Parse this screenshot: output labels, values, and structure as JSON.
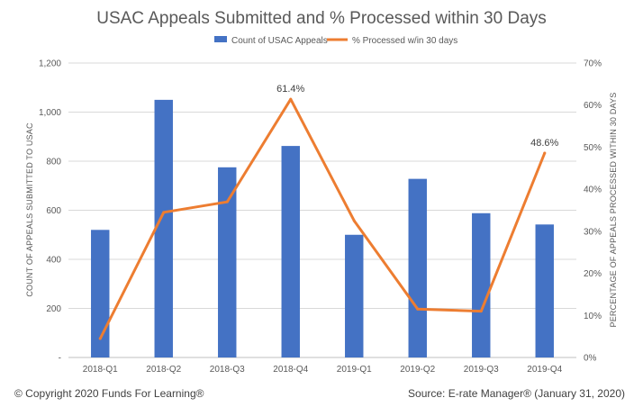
{
  "chart_data": {
    "type": "bar",
    "title": "USAC Appeals Submitted and % Processed within 30 Days",
    "categories": [
      "2018-Q1",
      "2018-Q2",
      "2018-Q3",
      "2018-Q4",
      "2019-Q1",
      "2019-Q2",
      "2019-Q3",
      "2019-Q4"
    ],
    "series": [
      {
        "name": "Count of USAC Appeals",
        "type": "bar",
        "axis": "left",
        "color": "#4472C4",
        "values": [
          520,
          1050,
          775,
          862,
          500,
          728,
          588,
          542
        ]
      },
      {
        "name": "% Processed w/in 30 days",
        "type": "line",
        "axis": "right",
        "color": "#ED7D31",
        "values": [
          4.5,
          34.5,
          37.0,
          61.4,
          32.5,
          11.5,
          11.0,
          48.6
        ]
      }
    ],
    "ylabel": "COUNT OF APPEALS SUBMITTED TO USAC",
    "y2label": "PERCENTAGE OF APPEALS PROCESSED WITHIN 30 DAYS",
    "ylim": [
      0,
      1200
    ],
    "yticks": [
      "-",
      "200",
      "400",
      "600",
      "800",
      "1,000",
      "1,200"
    ],
    "y2lim": [
      0,
      70
    ],
    "y2ticks": [
      "0%",
      "10%",
      "20%",
      "30%",
      "40%",
      "50%",
      "60%",
      "70%"
    ],
    "data_labels": [
      {
        "series": 1,
        "index": 3,
        "text": "61.4%"
      },
      {
        "series": 1,
        "index": 7,
        "text": "48.6%"
      }
    ],
    "grid": true,
    "legend": "top-center"
  },
  "footer": {
    "copyright": "© Copyright 2020 Funds For Learning®",
    "source": "Source: E-rate Manager® (January 31, 2020)"
  }
}
